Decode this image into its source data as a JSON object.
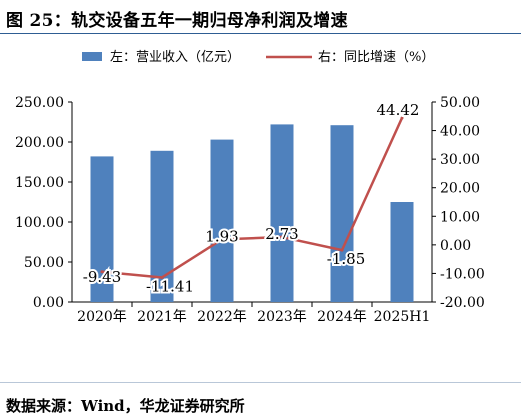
{
  "title": "图 25：轨交设备五年一期归母净利润及增速",
  "source": "数据来源：Wind，华龙证券研究所",
  "chart_data": {
    "type": "bar+line",
    "categories": [
      "2020年",
      "2021年",
      "2022年",
      "2023年",
      "2024年",
      "2025H1"
    ],
    "series": [
      {
        "name": "左：营业收入（亿元）",
        "type": "bar",
        "axis": "left",
        "values": [
          182,
          189,
          203,
          222,
          221,
          125
        ],
        "color": "#4f81bd"
      },
      {
        "name": "右：同比增速（%）",
        "type": "line",
        "axis": "right",
        "values": [
          -9.43,
          -11.41,
          1.93,
          2.73,
          -1.85,
          44.42
        ],
        "labels": [
          "-9.43",
          "-11.41",
          "1.93",
          "2.73",
          "-1.85",
          "44.42"
        ],
        "color": "#c0504d"
      }
    ],
    "y_left": {
      "min": 0,
      "max": 250,
      "step": 50,
      "ticks": [
        "0.00",
        "50.00",
        "100.00",
        "150.00",
        "200.00",
        "250.00"
      ]
    },
    "y_right": {
      "min": -20,
      "max": 50,
      "step": 10,
      "ticks": [
        "-20.00",
        "-10.00",
        "0.00",
        "10.00",
        "20.00",
        "30.00",
        "40.00",
        "50.00"
      ]
    },
    "legend_position": "top",
    "grid": false
  }
}
